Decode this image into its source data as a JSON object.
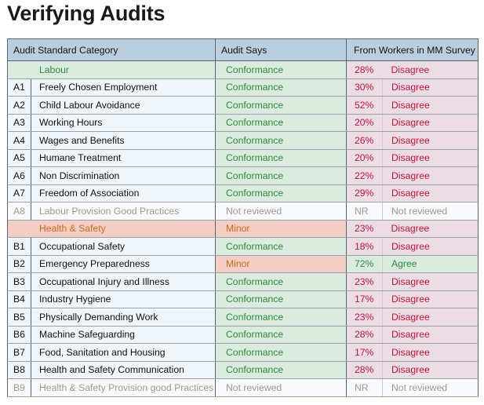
{
  "title": "Verifying Audits",
  "table": {
    "header": [
      "Audit Standard Category",
      "Audit Says",
      "From Workers in MM Survey"
    ],
    "rows": [
      {
        "category": "Labour",
        "audit": "Conformance",
        "percent": "28%",
        "workers": "Disagree"
      },
      {
        "code": "A1",
        "category": "Freely Chosen Employment",
        "audit": "Conformance",
        "percent": "30%",
        "workers": "Disagree"
      },
      {
        "code": "A2",
        "category": "Child Labour Avoidance",
        "audit": "Conformance",
        "percent": "52%",
        "workers": "Disagree"
      },
      {
        "code": "A3",
        "category": "Working Hours",
        "audit": "Conformance",
        "percent": "20%",
        "workers": "Disagree"
      },
      {
        "code": "A4",
        "category": "Wages and Benefits",
        "audit": "Conformance",
        "percent": "26%",
        "workers": "Disagree"
      },
      {
        "code": "A5",
        "category": "Humane Treatment",
        "audit": "Conformance",
        "percent": "20%",
        "workers": "Disagree"
      },
      {
        "code": "A6",
        "category": "Non Discrimination",
        "audit": "Conformance",
        "percent": "22%",
        "workers": "Disagree"
      },
      {
        "code": "A7",
        "category": "Freedom of Association",
        "audit": "Conformance",
        "percent": "29%",
        "workers": "Disagree"
      },
      {
        "code": "A8",
        "category": "Labour Provision Good Practices",
        "audit": "Not reviewed",
        "percent": "NR",
        "workers": "Not reviewed"
      },
      {
        "category": "Health & Safety",
        "audit": "Minor",
        "percent": "23%",
        "workers": "Disagree"
      },
      {
        "code": "B1",
        "category": "Occupational Safety",
        "audit": "Conformance",
        "percent": "18%",
        "workers": "Disagree"
      },
      {
        "code": "B2",
        "category": "Emergency Preparedness",
        "audit": "Minor",
        "percent": "72%",
        "workers": "Agree"
      },
      {
        "code": "B3",
        "category": "Occupational Injury and Illness",
        "audit": "Conformance",
        "percent": "23%",
        "workers": "Disagree"
      },
      {
        "code": "B4",
        "category": "Industry Hygiene",
        "audit": "Conformance",
        "percent": "17%",
        "workers": "Disagree"
      },
      {
        "code": "B5",
        "category": "Physically Demanding Work",
        "audit": "Conformance",
        "percent": "23%",
        "workers": "Disagree"
      },
      {
        "code": "B6",
        "category": "Machine Safeguarding",
        "audit": "Conformance",
        "percent": "28%",
        "workers": "Disagree"
      },
      {
        "code": "B7",
        "category": "Food, Sanitation and Housing",
        "audit": "Conformance",
        "percent": "17%",
        "workers": "Disagree"
      },
      {
        "code": "B8",
        "category": "Health and Safety Communication",
        "audit": "Conformance",
        "percent": "28%",
        "workers": "Disagree"
      },
      {
        "code": "B9",
        "category": "Health & Safety Provision good Practices",
        "audit": "Not reviewed",
        "percent": "NR",
        "workers": "Not reviewed"
      }
    ]
  }
}
